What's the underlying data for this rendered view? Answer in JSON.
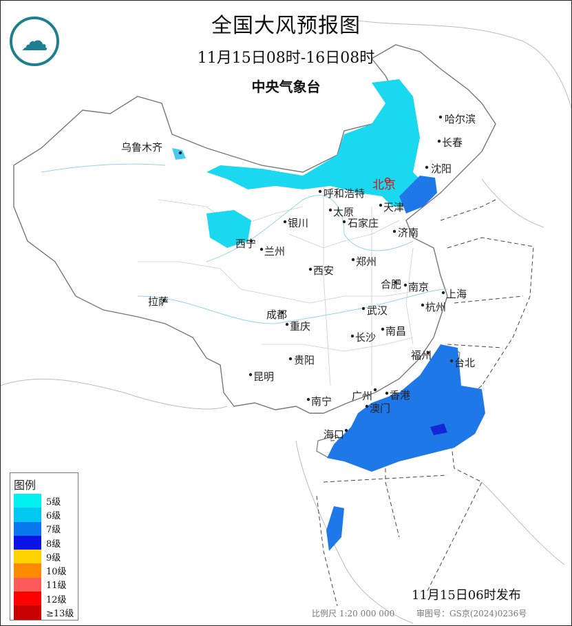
{
  "header": {
    "title": "全国大风预报图",
    "period": "11月15日08时-16日08时",
    "issuer": "中央气象台",
    "logo_icon": "cma-logo-icon"
  },
  "cities": [
    {
      "name": "乌鲁木齐"
    },
    {
      "name": "哈尔滨"
    },
    {
      "name": "长春"
    },
    {
      "name": "沈阳"
    },
    {
      "name": "北京",
      "capital": true
    },
    {
      "name": "天津"
    },
    {
      "name": "呼和浩特"
    },
    {
      "name": "太原"
    },
    {
      "name": "石家庄"
    },
    {
      "name": "银川"
    },
    {
      "name": "济南"
    },
    {
      "name": "西宁"
    },
    {
      "name": "兰州"
    },
    {
      "name": "西安"
    },
    {
      "name": "郑州"
    },
    {
      "name": "合肥"
    },
    {
      "name": "南京"
    },
    {
      "name": "上海"
    },
    {
      "name": "杭州"
    },
    {
      "name": "拉萨"
    },
    {
      "name": "成都"
    },
    {
      "name": "武汉"
    },
    {
      "name": "重庆"
    },
    {
      "name": "长沙"
    },
    {
      "name": "南昌"
    },
    {
      "name": "福州"
    },
    {
      "name": "台北"
    },
    {
      "name": "贵阳"
    },
    {
      "name": "昆明"
    },
    {
      "name": "南宁"
    },
    {
      "name": "广州"
    },
    {
      "name": "香港"
    },
    {
      "name": "澳门"
    },
    {
      "name": "海口"
    }
  ],
  "legend": {
    "title": "图例",
    "items": [
      {
        "label": "5级",
        "color": "#00f0f0"
      },
      {
        "label": "6级",
        "color": "#00c8f0"
      },
      {
        "label": "7级",
        "color": "#0a78f0"
      },
      {
        "label": "8级",
        "color": "#0a14e6"
      },
      {
        "label": "9级",
        "color": "#ffd200"
      },
      {
        "label": "10级",
        "color": "#ff8c00"
      },
      {
        "label": "11级",
        "color": "#ff5a5a"
      },
      {
        "label": "12级",
        "color": "#ff0000"
      },
      {
        "label": "≥13级",
        "color": "#c80000"
      }
    ]
  },
  "wind_areas": [
    {
      "level": "6级",
      "region": "内蒙古中东部、华北北部"
    },
    {
      "level": "6级",
      "region": "青海东部"
    },
    {
      "level": "7级",
      "region": "渤海"
    },
    {
      "level": "7级",
      "region": "台湾海峡、南海北部"
    },
    {
      "level": "8级",
      "region": "南海东北部局部"
    },
    {
      "level": "7级",
      "region": "南沙群岛附近"
    }
  ],
  "footer": {
    "issued": "11月15日06时发布",
    "scale": "比例尺 1:20 000 000",
    "map_approval": "审图号：GS京(2024)0236号"
  }
}
